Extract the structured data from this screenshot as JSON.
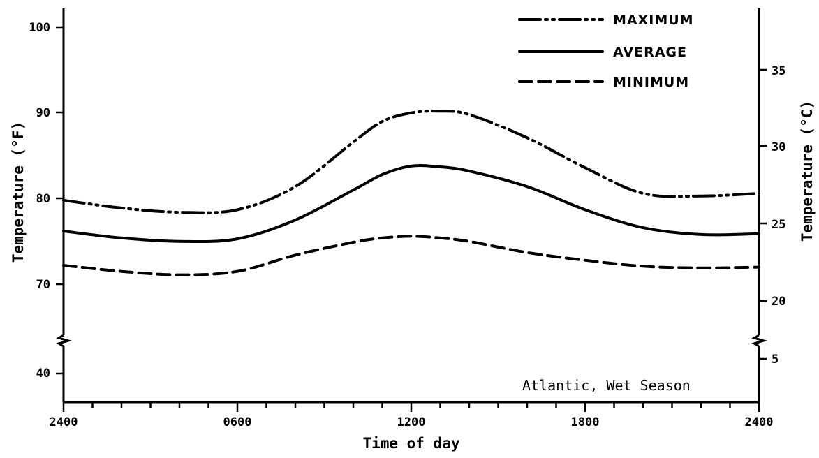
{
  "chart_data": {
    "type": "line",
    "xlabel": "Time of day",
    "ylabel_left": "Temperature (°F)",
    "ylabel_right": "Temperature (°C)",
    "annotation": "Atlantic, Wet Season",
    "x_ticks": [
      "2400",
      "0600",
      "1200",
      "1800",
      "2400"
    ],
    "x_hours_range": [
      0,
      24
    ],
    "y_left_ticks": [
      "100",
      "90",
      "80",
      "70",
      "40"
    ],
    "y_right_ticks": [
      "35",
      "30",
      "25",
      "20",
      "5"
    ],
    "axis_break": true,
    "grid": false,
    "legend_position": "top-right",
    "series": [
      {
        "name": "MAXIMUM",
        "dash": "dash-dot-dot",
        "x": [
          0,
          2,
          4,
          6,
          8,
          10,
          11,
          12,
          13,
          14,
          16,
          18,
          20,
          22,
          24
        ],
        "y_F": [
          79.8,
          78.9,
          78.4,
          78.7,
          81.4,
          86.6,
          89.0,
          90.0,
          90.2,
          89.8,
          87.1,
          83.6,
          80.6,
          80.3,
          80.6
        ]
      },
      {
        "name": "AVERAGE",
        "dash": "solid",
        "x": [
          0,
          2,
          4,
          6,
          8,
          10,
          11,
          12,
          13,
          14,
          16,
          18,
          20,
          22,
          24
        ],
        "y_F": [
          76.2,
          75.4,
          75.0,
          75.3,
          77.5,
          81.0,
          82.8,
          83.8,
          83.7,
          83.2,
          81.4,
          78.7,
          76.6,
          75.8,
          75.9
        ]
      },
      {
        "name": "MINIMUM",
        "dash": "dashed",
        "x": [
          0,
          2,
          4,
          6,
          8,
          10,
          11,
          12,
          13,
          14,
          16,
          18,
          20,
          22,
          24
        ],
        "y_F": [
          72.2,
          71.5,
          71.1,
          71.5,
          73.4,
          74.9,
          75.4,
          75.6,
          75.4,
          75.0,
          73.7,
          72.8,
          72.1,
          71.9,
          72.0
        ]
      }
    ]
  }
}
